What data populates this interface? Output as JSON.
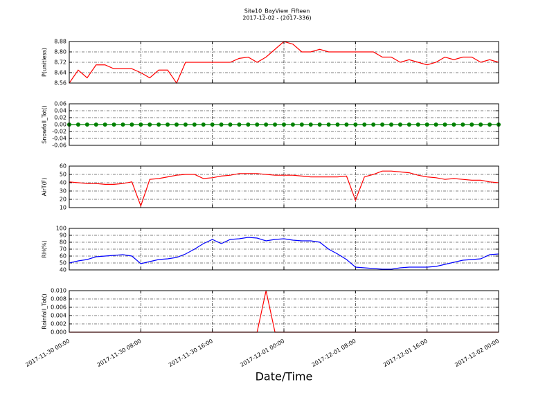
{
  "title": "Site10_BayView_Fifteen",
  "subtitle": "2017-12-02 - (2017-336)",
  "xlabel": "Date/Time",
  "xlim": [
    "2017-11-30 00:00",
    "2017-12-02 00:00"
  ],
  "xticks": [
    "2017-11-30 00:00",
    "2017-11-30 08:00",
    "2017-11-30 16:00",
    "2017-12-01 00:00",
    "2017-12-01 08:00",
    "2017-12-01 16:00",
    "2017-12-02 00:00"
  ],
  "x": [
    "2017-11-30 00:00",
    "2017-11-30 01:00",
    "2017-11-30 02:00",
    "2017-11-30 03:00",
    "2017-11-30 04:00",
    "2017-11-30 05:00",
    "2017-11-30 06:00",
    "2017-11-30 07:00",
    "2017-11-30 08:00",
    "2017-11-30 09:00",
    "2017-11-30 10:00",
    "2017-11-30 11:00",
    "2017-11-30 12:00",
    "2017-11-30 13:00",
    "2017-11-30 14:00",
    "2017-11-30 15:00",
    "2017-11-30 16:00",
    "2017-11-30 17:00",
    "2017-11-30 18:00",
    "2017-11-30 19:00",
    "2017-11-30 20:00",
    "2017-11-30 21:00",
    "2017-11-30 22:00",
    "2017-11-30 23:00",
    "2017-12-01 00:00",
    "2017-12-01 01:00",
    "2017-12-01 02:00",
    "2017-12-01 03:00",
    "2017-12-01 04:00",
    "2017-12-01 05:00",
    "2017-12-01 06:00",
    "2017-12-01 07:00",
    "2017-12-01 08:00",
    "2017-12-01 09:00",
    "2017-12-01 10:00",
    "2017-12-01 11:00",
    "2017-12-01 12:00",
    "2017-12-01 13:00",
    "2017-12-01 14:00",
    "2017-12-01 15:00",
    "2017-12-01 16:00",
    "2017-12-01 17:00",
    "2017-12-01 18:00",
    "2017-12-01 19:00",
    "2017-12-01 20:00",
    "2017-12-01 21:00",
    "2017-12-01 22:00",
    "2017-12-01 23:00",
    "2017-12-02 00:00"
  ],
  "chart_data": [
    {
      "type": "line",
      "ylabel": "P(unitless)",
      "color": "#ff0000",
      "grid": true,
      "ylim": [
        8.56,
        8.88
      ],
      "yticks": [
        8.56,
        8.64,
        8.72,
        {
          "value": 8.8,
          "label": "8.80"
        },
        8.88
      ],
      "values": [
        8.56,
        8.66,
        8.6,
        8.7,
        8.7,
        8.67,
        8.67,
        8.67,
        8.64,
        8.6,
        8.66,
        8.66,
        8.56,
        8.72,
        8.72,
        8.72,
        8.72,
        8.72,
        8.72,
        8.75,
        8.76,
        8.72,
        8.76,
        8.82,
        8.88,
        8.86,
        8.8,
        8.8,
        8.82,
        8.8,
        8.8,
        8.8,
        8.8,
        8.8,
        8.8,
        8.76,
        8.76,
        8.72,
        8.74,
        8.72,
        8.7,
        8.72,
        8.76,
        8.74,
        8.76,
        8.76,
        8.72,
        8.74,
        8.72
      ]
    },
    {
      "type": "line",
      "ylabel": "Snowfall_Tot()",
      "color": "#008000",
      "grid": true,
      "markers": true,
      "ylim": [
        -0.06,
        0.06
      ],
      "yticks": [
        -0.06,
        -0.04,
        -0.02,
        {
          "value": 0,
          "label": "0.00"
        },
        0.02,
        0.04,
        0.06
      ],
      "values": [
        0,
        0,
        0,
        0,
        0,
        0,
        0,
        0,
        0,
        0,
        0,
        0,
        0,
        0,
        0,
        0,
        0,
        0,
        0,
        0,
        0,
        0,
        0,
        0,
        0,
        0,
        0,
        0,
        0,
        0,
        0,
        0,
        0,
        0,
        0,
        0,
        0,
        0,
        0,
        0,
        0,
        0,
        0,
        0,
        0,
        0,
        0,
        0,
        0
      ]
    },
    {
      "type": "line",
      "ylabel": "AirT(F)",
      "color": "#ff0000",
      "grid": true,
      "ylim": [
        10,
        60
      ],
      "yticks": [
        10,
        20,
        30,
        40,
        50,
        60
      ],
      "values": [
        41,
        40,
        39,
        39,
        38,
        38,
        39,
        41,
        12,
        44,
        45,
        47,
        49,
        50,
        50,
        45,
        46,
        48,
        49,
        51,
        51,
        51,
        50,
        49,
        49,
        49,
        48,
        47,
        47,
        47,
        47,
        48,
        19,
        47,
        50,
        54,
        54,
        53,
        52,
        49,
        47,
        46,
        44,
        45,
        44,
        43,
        43,
        41,
        40
      ]
    },
    {
      "type": "line",
      "ylabel": "RH(%)",
      "color": "#0000ff",
      "grid": true,
      "ylim": [
        40,
        100
      ],
      "yticks": [
        40,
        50,
        60,
        70,
        80,
        90,
        100
      ],
      "values": [
        50,
        53,
        55,
        59,
        60,
        61,
        62,
        60,
        49,
        52,
        55,
        56,
        58,
        63,
        70,
        78,
        84,
        78,
        84,
        85,
        87,
        86,
        82,
        84,
        85,
        83,
        82,
        82,
        80,
        70,
        63,
        55,
        44,
        43,
        42,
        41,
        41,
        43,
        44,
        44,
        44,
        45,
        48,
        51,
        54,
        55,
        56,
        62,
        63
      ]
    },
    {
      "type": "line",
      "ylabel": "Rainfall_Tot()",
      "color": "#ff0000",
      "grid": true,
      "ylim": [
        0,
        0.01
      ],
      "yticks": [
        {
          "value": 0,
          "label": "0.000"
        },
        {
          "value": 0.002,
          "label": "0.002"
        },
        {
          "value": 0.004,
          "label": "0.004"
        },
        {
          "value": 0.006,
          "label": "0.006"
        },
        {
          "value": 0.008,
          "label": "0.008"
        },
        {
          "value": 0.01,
          "label": "0.010"
        }
      ],
      "values": [
        0,
        0,
        0,
        0,
        0,
        0,
        0,
        0,
        0,
        0,
        0,
        0,
        0,
        0,
        0,
        0,
        0,
        0,
        0,
        0,
        0,
        0,
        0.01,
        0,
        0,
        0,
        0,
        0,
        0,
        0,
        0,
        0,
        0,
        0,
        0,
        0,
        0,
        0,
        0,
        0,
        0,
        0,
        0,
        0,
        0,
        0,
        0,
        0,
        0
      ]
    }
  ]
}
